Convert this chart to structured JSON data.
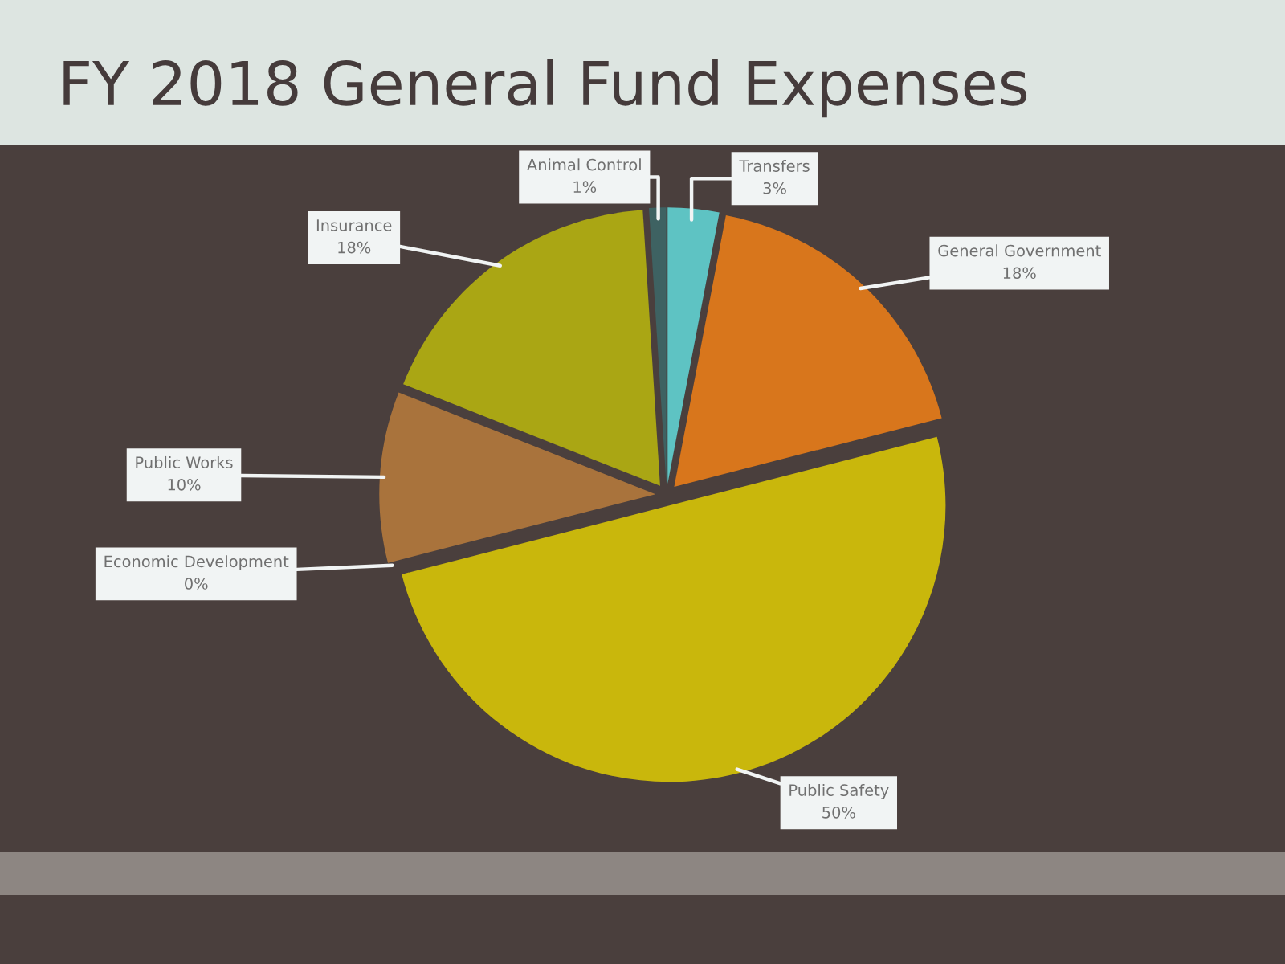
{
  "chart_data": {
    "type": "pie",
    "title": "FY 2018 General Fund Expenses",
    "categories": [
      "Transfers",
      "General Government",
      "Public Safety",
      "Economic Development",
      "Public Works",
      "Insurance",
      "Animal Control"
    ],
    "values": [
      3,
      18,
      50,
      0,
      10,
      18,
      1
    ],
    "value_labels": [
      "3%",
      "18%",
      "50%",
      "0%",
      "10%",
      "18%",
      "1%"
    ],
    "colors": [
      "#5ec3c3",
      "#d8761c",
      "#c9b70c",
      "#8a8a3a",
      "#a9733c",
      "#aaa614",
      "#3e6262"
    ],
    "legend": false
  }
}
